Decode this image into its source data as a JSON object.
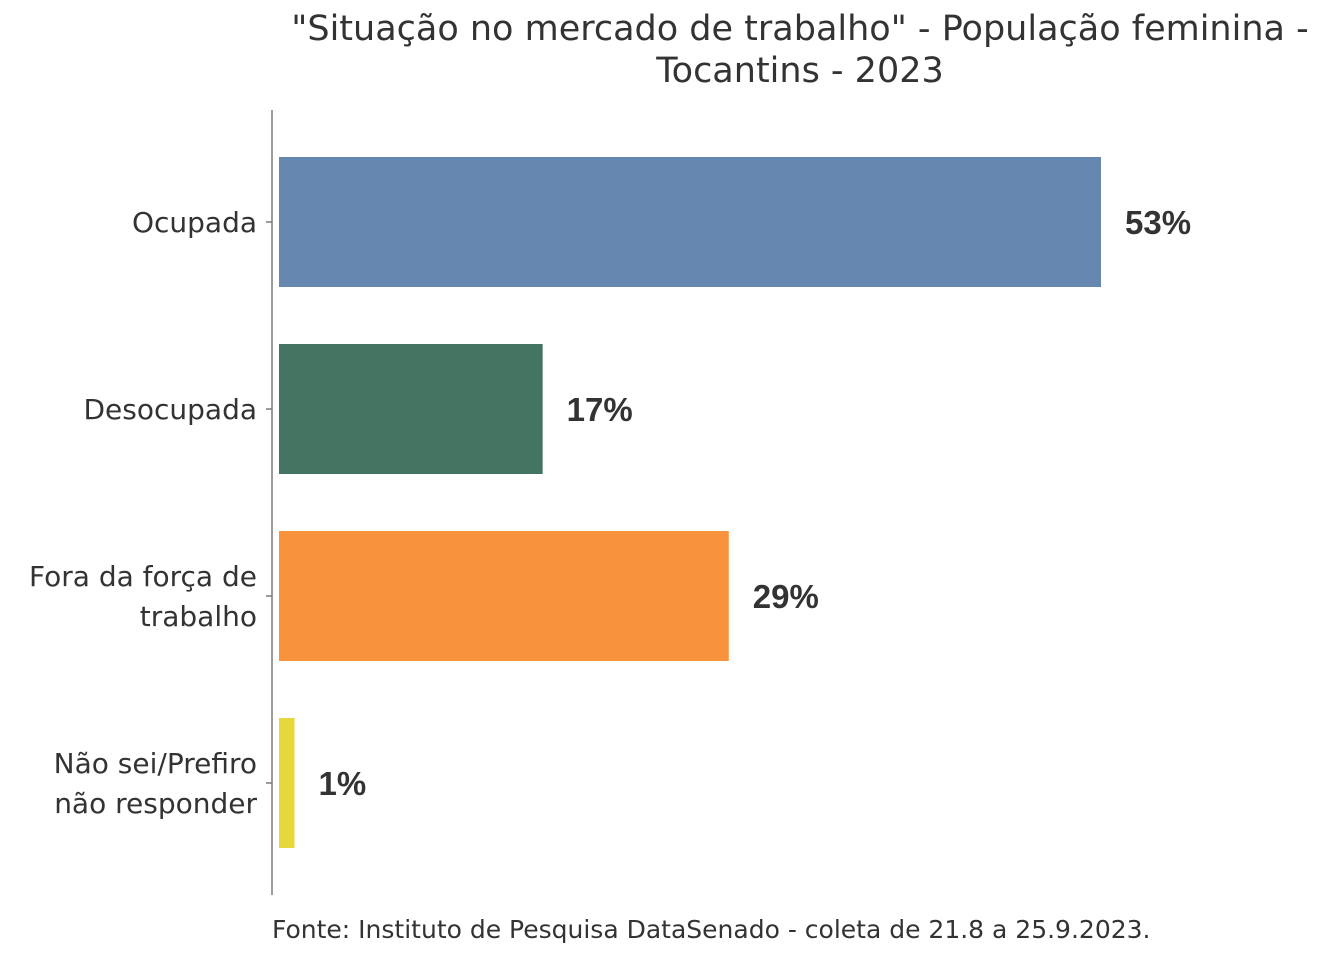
{
  "chart_data": {
    "type": "bar",
    "orientation": "horizontal",
    "title_lines": [
      "\"Situação no mercado de trabalho\" - População feminina -",
      "Tocantins - 2023"
    ],
    "categories": [
      [
        "Ocupada"
      ],
      [
        "Desocupada"
      ],
      [
        "Fora da força de",
        "trabalho"
      ],
      [
        "Não sei/Prefiro",
        "não responder"
      ]
    ],
    "values": [
      53,
      17,
      29,
      1
    ],
    "value_labels": [
      "53%",
      "17%",
      "29%",
      "1%"
    ],
    "colors": [
      "#6688b0",
      "#447562",
      "#f9923c",
      "#e6d83a"
    ],
    "xlim": [
      0,
      70
    ],
    "xlabel": "",
    "ylabel": "",
    "grid": false,
    "legend": "none",
    "source": "Fonte: Instituto de Pesquisa DataSenado - coleta de 21.8 a 25.9.2023."
  }
}
